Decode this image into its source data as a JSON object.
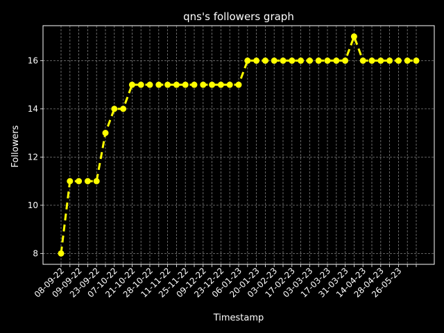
{
  "chart_data": {
    "type": "line",
    "title": "qns's followers graph",
    "xlabel": "Timestamp",
    "ylabel": "Followers",
    "ylim": [
      7.55,
      17.45
    ],
    "yticks": [
      8,
      10,
      12,
      14,
      16
    ],
    "grid": true,
    "line_style": "dashed",
    "colors": {
      "background": "#000000",
      "axes": "#ffffff",
      "grid": "#808080",
      "series": "#ffff00"
    },
    "x_ticklabels": [
      "08-09-22",
      "09-09-22",
      "23-09-22",
      "07-10-22",
      "21-10-22",
      "28-10-22",
      "11-11-22",
      "25-11-22",
      "09-12-22",
      "23-12-22",
      "06-01-23",
      "20-01-23",
      "03-02-23",
      "17-02-23",
      "03-03-23",
      "17-03-23",
      "31-03-23",
      "14-04-23",
      "28-04-23",
      "26-05-23"
    ],
    "values": [
      8,
      11,
      11,
      11,
      11,
      13,
      14,
      14,
      15,
      15,
      15,
      15,
      15,
      15,
      15,
      15,
      15,
      15,
      15,
      15,
      15,
      16,
      16,
      16,
      16,
      16,
      16,
      16,
      16,
      16,
      16,
      16,
      16,
      17,
      16,
      16,
      16,
      16,
      16,
      16,
      16
    ]
  }
}
